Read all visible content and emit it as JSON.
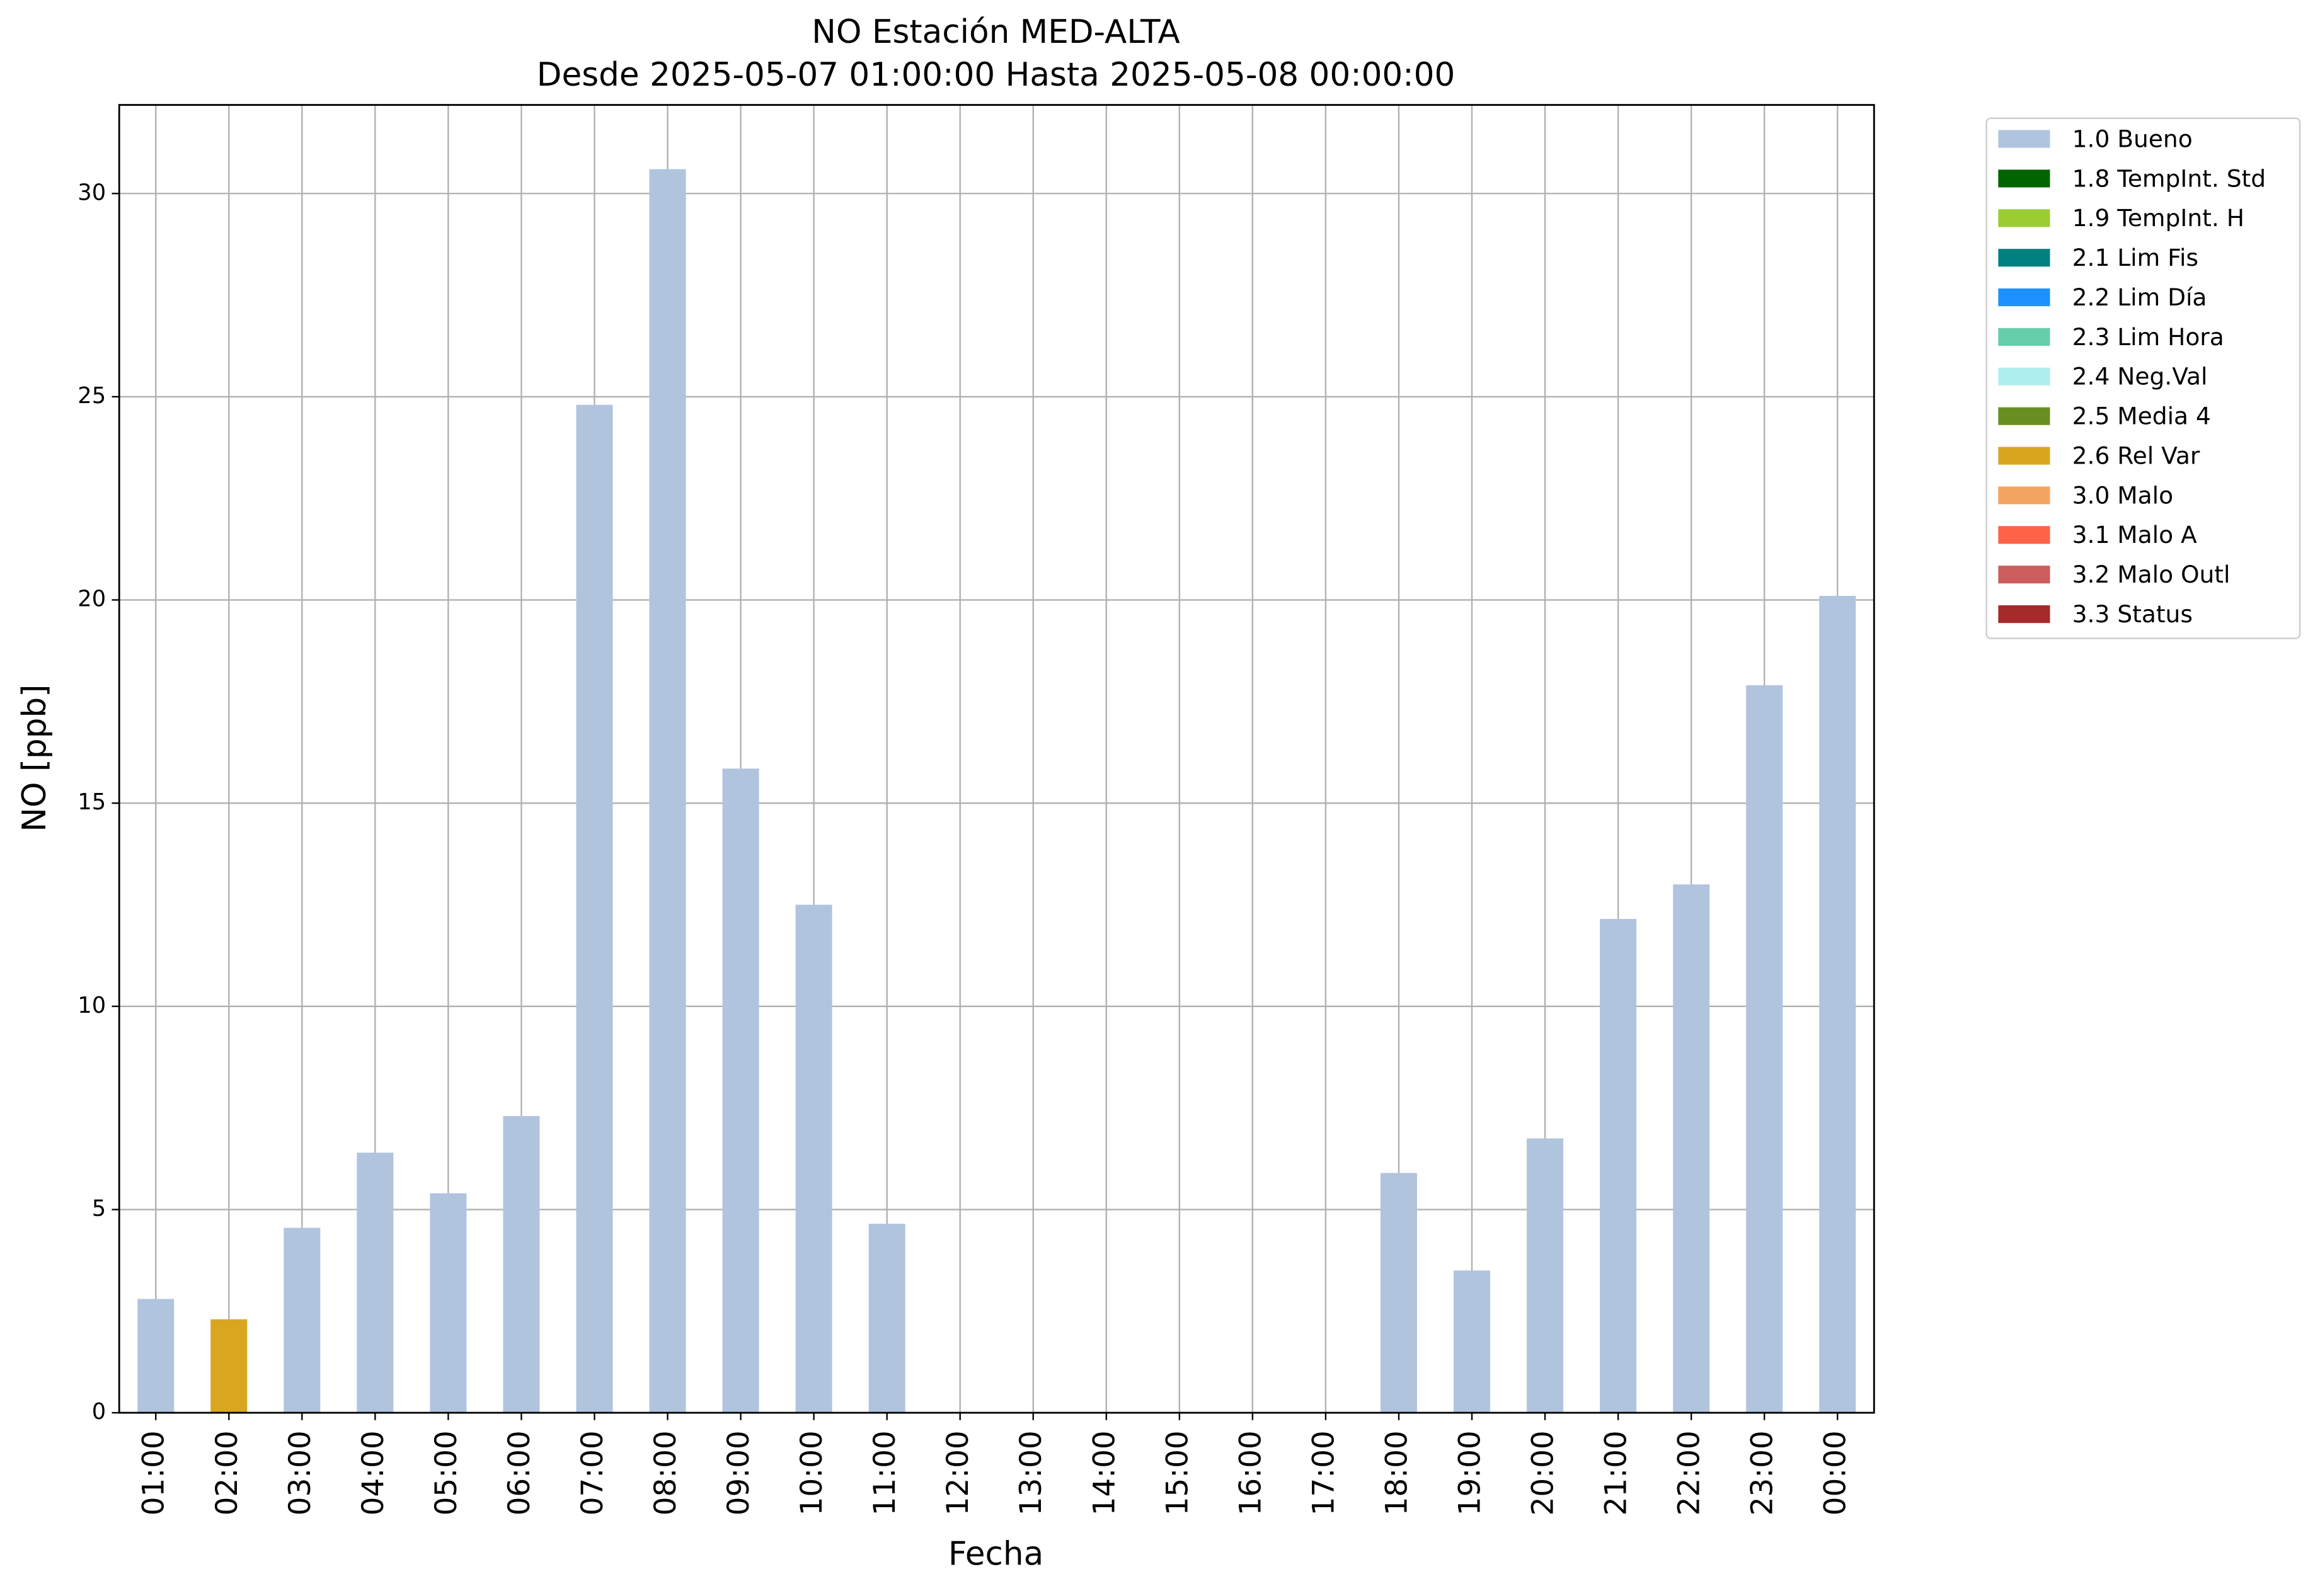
{
  "chart_data": {
    "type": "bar",
    "stacked": true,
    "title": "NO Estación MED-ALTA",
    "subtitle": "Desde 2025-05-07 01:00:00 Hasta 2025-05-08 00:00:00",
    "x_label": "Fecha",
    "y_label": "NO [ppb]",
    "categories": [
      "01:00",
      "02:00",
      "03:00",
      "04:00",
      "05:00",
      "06:00",
      "07:00",
      "08:00",
      "09:00",
      "10:00",
      "11:00",
      "12:00",
      "13:00",
      "14:00",
      "15:00",
      "16:00",
      "17:00",
      "18:00",
      "19:00",
      "20:00",
      "21:00",
      "22:00",
      "23:00",
      "00:00"
    ],
    "series": [
      {
        "name": "1.0 Bueno",
        "color": "#b0c4de",
        "values": [
          2.8,
          null,
          4.55,
          6.4,
          5.4,
          7.3,
          24.8,
          30.6,
          15.85,
          12.5,
          4.65,
          null,
          null,
          null,
          null,
          null,
          null,
          5.9,
          3.5,
          6.75,
          12.15,
          13.0,
          17.9,
          20.1
        ]
      },
      {
        "name": "1.8 TempInt. Std",
        "color": "#006400",
        "values": [
          null,
          null,
          null,
          null,
          null,
          null,
          null,
          null,
          null,
          null,
          null,
          null,
          null,
          null,
          null,
          null,
          null,
          null,
          null,
          null,
          null,
          null,
          null,
          null
        ]
      },
      {
        "name": "1.9 TempInt. H",
        "color": "#9acd32",
        "values": [
          null,
          null,
          null,
          null,
          null,
          null,
          null,
          null,
          null,
          null,
          null,
          null,
          null,
          null,
          null,
          null,
          null,
          null,
          null,
          null,
          null,
          null,
          null,
          null
        ]
      },
      {
        "name": "2.1 Lim Fis",
        "color": "#008080",
        "values": [
          null,
          null,
          null,
          null,
          null,
          null,
          null,
          null,
          null,
          null,
          null,
          null,
          null,
          null,
          null,
          null,
          null,
          null,
          null,
          null,
          null,
          null,
          null,
          null
        ]
      },
      {
        "name": "2.2 Lim Día",
        "color": "#1e90ff",
        "values": [
          null,
          null,
          null,
          null,
          null,
          null,
          null,
          null,
          null,
          null,
          null,
          null,
          null,
          null,
          null,
          null,
          null,
          null,
          null,
          null,
          null,
          null,
          null,
          null
        ]
      },
      {
        "name": "2.3 Lim Hora",
        "color": "#66cdaa",
        "values": [
          null,
          null,
          null,
          null,
          null,
          null,
          null,
          null,
          null,
          null,
          null,
          null,
          null,
          null,
          null,
          null,
          null,
          null,
          null,
          null,
          null,
          null,
          null,
          null
        ]
      },
      {
        "name": "2.4 Neg.Val",
        "color": "#afeeee",
        "values": [
          null,
          null,
          null,
          null,
          null,
          null,
          null,
          null,
          null,
          null,
          null,
          null,
          null,
          null,
          null,
          null,
          null,
          null,
          null,
          null,
          null,
          null,
          null,
          null
        ]
      },
      {
        "name": "2.5 Media 4",
        "color": "#6b8e23",
        "values": [
          null,
          null,
          null,
          null,
          null,
          null,
          null,
          null,
          null,
          null,
          null,
          null,
          null,
          null,
          null,
          null,
          null,
          null,
          null,
          null,
          null,
          null,
          null,
          null
        ]
      },
      {
        "name": "2.6 Rel Var",
        "color": "#daa520",
        "values": [
          null,
          2.3,
          null,
          null,
          null,
          null,
          null,
          null,
          null,
          null,
          null,
          null,
          null,
          null,
          null,
          null,
          null,
          null,
          null,
          null,
          null,
          null,
          null,
          null
        ]
      },
      {
        "name": "3.0 Malo",
        "color": "#f4a460",
        "values": [
          null,
          null,
          null,
          null,
          null,
          null,
          null,
          null,
          null,
          null,
          null,
          null,
          null,
          null,
          null,
          null,
          null,
          null,
          null,
          null,
          null,
          null,
          null,
          null
        ]
      },
      {
        "name": "3.1 Malo A",
        "color": "#ff6347",
        "values": [
          null,
          null,
          null,
          null,
          null,
          null,
          null,
          null,
          null,
          null,
          null,
          null,
          null,
          null,
          null,
          null,
          null,
          null,
          null,
          null,
          null,
          null,
          null,
          null
        ]
      },
      {
        "name": "3.2 Malo Outl",
        "color": "#cd5c5c",
        "values": [
          null,
          null,
          null,
          null,
          null,
          null,
          null,
          null,
          null,
          null,
          null,
          null,
          null,
          null,
          null,
          null,
          null,
          null,
          null,
          null,
          null,
          null,
          null,
          null
        ]
      },
      {
        "name": "3.3 Status",
        "color": "#a52a2a",
        "values": [
          null,
          null,
          null,
          null,
          null,
          null,
          null,
          null,
          null,
          null,
          null,
          null,
          null,
          null,
          null,
          null,
          null,
          null,
          null,
          null,
          null,
          null,
          null,
          null
        ]
      }
    ],
    "ylim": [
      0,
      32.18
    ],
    "yticks": [
      0,
      5,
      10,
      15,
      20,
      25,
      30
    ],
    "grid": true,
    "legend": "outside-upper-right"
  }
}
